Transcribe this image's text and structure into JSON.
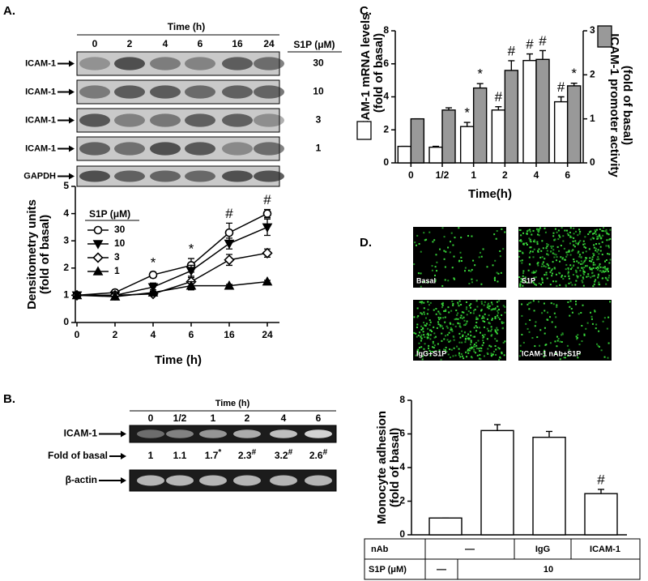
{
  "panel_labels": [
    "A.",
    "B.",
    "C.",
    "D."
  ],
  "blot_a": {
    "title": "Time (h)",
    "columns": [
      "0",
      "2",
      "4",
      "6",
      "16",
      "24"
    ],
    "dose_header": "S1P (μM)",
    "rows": [
      {
        "label": "ICAM-1",
        "dose": "30"
      },
      {
        "label": "ICAM-1",
        "dose": "10"
      },
      {
        "label": "ICAM-1",
        "dose": "3"
      },
      {
        "label": "ICAM-1",
        "dose": "1"
      },
      {
        "label": "GAPDH"
      }
    ]
  },
  "blot_b": {
    "title": "Time (h)",
    "columns": [
      "0",
      "1/2",
      "1",
      "2",
      "4",
      "6"
    ],
    "rows": [
      {
        "label": "ICAM-1"
      },
      {
        "label": "β-actin"
      }
    ],
    "fold_label": "Fold of basal",
    "fold": [
      {
        "text": "1"
      },
      {
        "text": "1.1"
      },
      {
        "text": "1.7",
        "mark": "*"
      },
      {
        "text": "2.3",
        "mark": "#"
      },
      {
        "text": "3.2",
        "mark": "#"
      },
      {
        "text": "2.6",
        "mark": "#"
      }
    ]
  },
  "images_d": {
    "labels": [
      "Basal",
      "S1P",
      "IgG+S1P",
      "ICAM-1 nAb+S1P"
    ]
  },
  "chart_data": [
    {
      "type": "line",
      "ylabel": [
        "Densitometry units",
        "(fold of basal)"
      ],
      "xlabel": "Time (h)",
      "categories": [
        "0",
        "2",
        "4",
        "6",
        "16",
        "24"
      ],
      "ylim": [
        0,
        5
      ],
      "yticks": [
        0,
        1,
        2,
        3,
        4,
        5
      ],
      "legend_title": "S1P (μM)",
      "annotations": [
        null,
        null,
        "*",
        "*",
        "#",
        "#"
      ],
      "series": [
        {
          "name": "30",
          "marker": "circle",
          "filled": false,
          "color": "#000000",
          "values": [
            1,
            1.1,
            1.75,
            2.1,
            3.3,
            4.0
          ],
          "errors": [
            0.05,
            0.1,
            0.1,
            0.25,
            0.35,
            0.15
          ]
        },
        {
          "name": "10",
          "marker": "triangle-down",
          "filled": true,
          "color": "#000000",
          "values": [
            1,
            1.0,
            1.3,
            1.9,
            2.9,
            3.5
          ],
          "errors": [
            0.05,
            0.1,
            0.15,
            0.2,
            0.2,
            0.3
          ]
        },
        {
          "name": "3",
          "marker": "diamond",
          "filled": false,
          "color": "#000000",
          "values": [
            1,
            1.0,
            1.05,
            1.5,
            2.3,
            2.55
          ],
          "errors": [
            0.05,
            0.05,
            0.05,
            0.15,
            0.2,
            0.15
          ]
        },
        {
          "name": "1",
          "marker": "triangle-up",
          "filled": true,
          "color": "#000000",
          "values": [
            1,
            0.95,
            1.1,
            1.35,
            1.35,
            1.5
          ],
          "errors": [
            0.05,
            0.1,
            0.1,
            0.15,
            0.05,
            0.05
          ]
        }
      ]
    },
    {
      "type": "bar",
      "ylabel": [
        "ICAM-1 mRNA levels",
        "(fold of basal)"
      ],
      "y2label": [
        "ICAM-1 promoter activity",
        "(fold of basal)"
      ],
      "xlabel": "Time(h)",
      "categories": [
        "0",
        "1/2",
        "1",
        "2",
        "4",
        "6"
      ],
      "ylim": [
        0,
        8
      ],
      "yticks": [
        0,
        2,
        4,
        6,
        8
      ],
      "y2lim": [
        0,
        3
      ],
      "y2ticks": [
        0,
        1,
        2,
        3
      ],
      "series": [
        {
          "color": "#ffffff",
          "values": [
            1,
            0.95,
            2.2,
            3.2,
            6.2,
            3.7
          ],
          "errors": [
            0,
            0.05,
            0.25,
            0.2,
            0.4,
            0.3
          ],
          "annotations": [
            null,
            null,
            "*",
            "#",
            "#",
            "#"
          ]
        },
        {
          "color": "#999999",
          "axis": "y2",
          "values": [
            1,
            1.2,
            1.7,
            2.1,
            2.35,
            1.75
          ],
          "errors": [
            0,
            0.05,
            0.1,
            0.22,
            0.2,
            0.06
          ],
          "annotations": [
            null,
            null,
            "*",
            "#",
            "#",
            "*"
          ]
        }
      ]
    },
    {
      "type": "bar",
      "ylabel": [
        "Monocyte adhesion",
        "(fold of basal)"
      ],
      "categories": [
        null,
        null,
        null,
        null
      ],
      "ylim": [
        0,
        8
      ],
      "yticks": [
        0,
        2,
        4,
        6,
        8
      ],
      "series": [
        {
          "color": "#ffffff",
          "values": [
            1,
            6.2,
            5.8,
            2.45
          ],
          "errors": [
            0,
            0.35,
            0.35,
            0.25
          ],
          "annotations": [
            null,
            null,
            null,
            "#"
          ]
        }
      ]
    }
  ],
  "table_d": {
    "rows": [
      [
        "nAb",
        "—",
        "IgG",
        "ICAM-1"
      ],
      [
        "S1P (μM)",
        "—",
        "10"
      ]
    ]
  }
}
